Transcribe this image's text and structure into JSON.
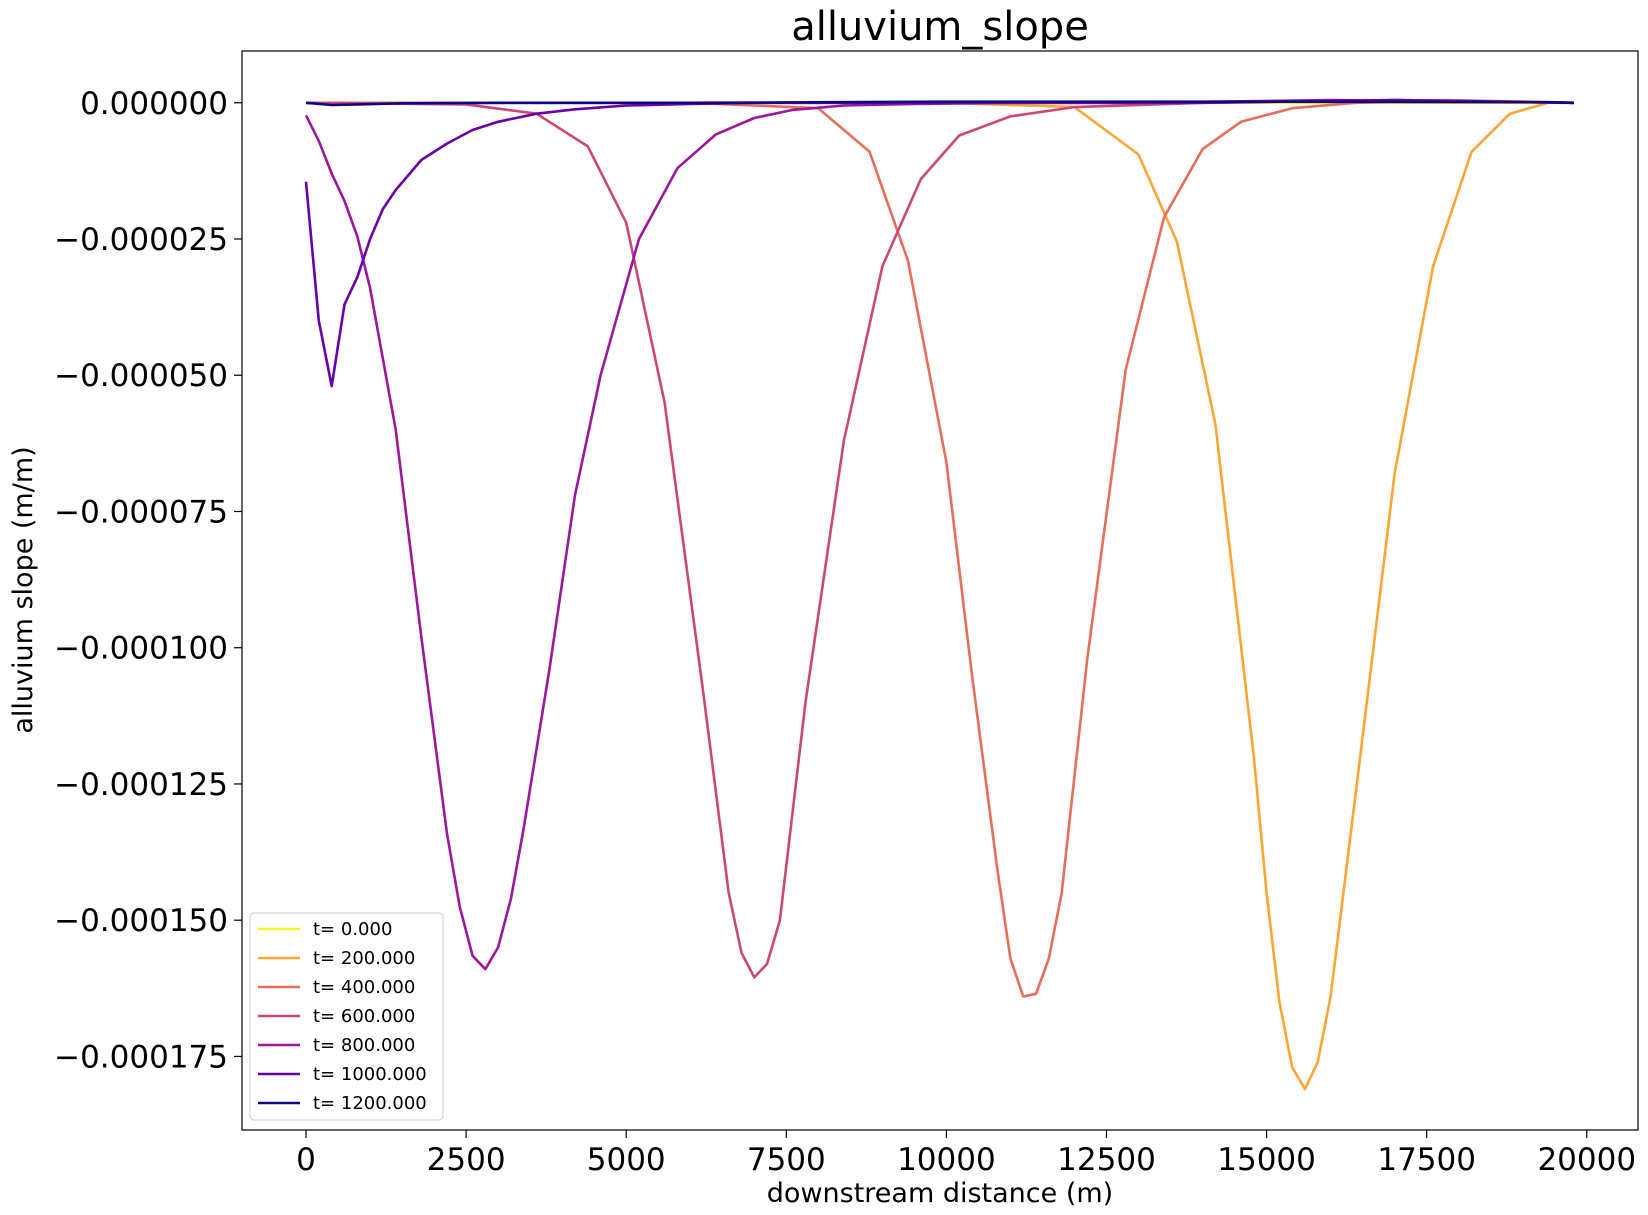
{
  "chart_data": {
    "type": "line",
    "title": "alluvium_slope",
    "xlabel": "downstream distance (m)",
    "ylabel": "alluvium slope (m/m)",
    "xlim": [
      -1000,
      20800
    ],
    "ylim": [
      -0.0001885,
      9.5e-06
    ],
    "xticks": [
      0,
      2500,
      5000,
      7500,
      10000,
      12500,
      15000,
      17500,
      20000
    ],
    "xtick_labels": [
      "0",
      "2500",
      "5000",
      "7500",
      "10000",
      "12500",
      "15000",
      "17500",
      "20000"
    ],
    "yticks": [
      0,
      -2.5e-05,
      -5e-05,
      -7.5e-05,
      -0.0001,
      -0.000125,
      -0.00015,
      -0.000175
    ],
    "ytick_labels": [
      "0.000000",
      "−0.000025",
      "−0.000050",
      "−0.000075",
      "−0.000100",
      "−0.000125",
      "−0.000150",
      "−0.000175"
    ],
    "grid": false,
    "legend_position": "bottom-left",
    "series": [
      {
        "name": "t= 0.000",
        "color": "#f0f921",
        "x": [
          0,
          19800
        ],
        "y": [
          0,
          0
        ]
      },
      {
        "name": "t= 200.000",
        "color": "#fca636",
        "x": [
          0,
          10000,
          12000,
          13000,
          13600,
          14200,
          14800,
          15000,
          15200,
          15400,
          15600,
          15800,
          16000,
          16400,
          17000,
          17600,
          18200,
          18800,
          19400,
          19800
        ],
        "y": [
          0,
          0,
          -8e-07,
          -9.5e-06,
          -2.55e-05,
          -5.9e-05,
          -0.00012,
          -0.000145,
          -0.000165,
          -0.000177,
          -0.000181,
          -0.000176,
          -0.000164,
          -0.000126,
          -6.8e-05,
          -3e-05,
          -9e-06,
          -2e-06,
          0,
          0
        ]
      },
      {
        "name": "t= 400.000",
        "color": "#e76f5a",
        "x": [
          0,
          6000,
          8000,
          8800,
          9400,
          10000,
          10400,
          10800,
          11000,
          11200,
          11400,
          11600,
          11800,
          12200,
          12800,
          13400,
          14000,
          14600,
          15400,
          16400,
          17800,
          19800
        ],
        "y": [
          0,
          0,
          -1e-06,
          -9e-06,
          -2.9e-05,
          -6.6e-05,
          -0.000105,
          -0.000141,
          -0.000157,
          -0.000164,
          -0.0001635,
          -0.000157,
          -0.000145,
          -0.000102,
          -4.9e-05,
          -2.1e-05,
          -8.5e-06,
          -3.5e-06,
          -1e-06,
          0,
          5e-07,
          0
        ]
      },
      {
        "name": "t= 600.000",
        "color": "#cc4778",
        "x": [
          0,
          2500,
          3600,
          4400,
          5000,
          5600,
          6200,
          6600,
          6800,
          7000,
          7200,
          7400,
          7800,
          8400,
          9000,
          9600,
          10200,
          11000,
          12000,
          14000,
          17000,
          19800
        ],
        "y": [
          0,
          -3e-07,
          -2e-06,
          -8e-06,
          -2.2e-05,
          -5.5e-05,
          -0.000108,
          -0.000145,
          -0.000156,
          -0.0001605,
          -0.000158,
          -0.00015,
          -0.00011,
          -6.2e-05,
          -3e-05,
          -1.4e-05,
          -6e-06,
          -2.5e-06,
          -8e-07,
          0,
          5e-07,
          0
        ]
      },
      {
        "name": "t= 800.000",
        "color": "#9c179e",
        "x": [
          0,
          200,
          400,
          600,
          800,
          1000,
          1400,
          1800,
          2200,
          2400,
          2600,
          2800,
          3000,
          3200,
          3400,
          3800,
          4200,
          4600,
          5200,
          5800,
          6400,
          7000,
          7600,
          8400,
          9500,
          11000,
          13000,
          16000,
          19800
        ],
        "y": [
          -2.3e-06,
          -7e-06,
          -1.3e-05,
          -1.8e-05,
          -2.45e-05,
          -3.4e-05,
          -6e-05,
          -9.8e-05,
          -0.000134,
          -0.0001475,
          -0.0001565,
          -0.000159,
          -0.000155,
          -0.000146,
          -0.000133,
          -0.000104,
          -7.2e-05,
          -5e-05,
          -2.5e-05,
          -1.2e-05,
          -5.8e-06,
          -2.8e-06,
          -1.3e-06,
          -5e-07,
          -2e-07,
          0,
          0,
          5e-07,
          0
        ]
      },
      {
        "name": "t= 1000.000",
        "color": "#6a00a8",
        "x": [
          0,
          200,
          400,
          600,
          800,
          1000,
          1200,
          1400,
          1800,
          2200,
          2600,
          3000,
          3600,
          4200,
          5000,
          6000,
          7000,
          8000,
          9000,
          11000,
          14000,
          17000,
          19800
        ],
        "y": [
          -1.45e-05,
          -4e-05,
          -5.2e-05,
          -3.7e-05,
          -3.2e-05,
          -2.5e-05,
          -1.95e-05,
          -1.6e-05,
          -1.05e-05,
          -7.5e-06,
          -5e-06,
          -3.5e-06,
          -2e-06,
          -1.2e-06,
          -5e-07,
          -2e-07,
          0,
          0,
          0,
          0,
          0,
          5e-07,
          0
        ]
      },
      {
        "name": "t= 1200.000",
        "color": "#0d0887",
        "x": [
          0,
          400,
          800,
          1500,
          3000,
          6000,
          10000,
          15000,
          19400,
          19800
        ],
        "y": [
          0,
          -4e-07,
          -3e-07,
          -1e-07,
          0,
          0,
          2e-07,
          2e-07,
          1e-07,
          0
        ]
      }
    ]
  }
}
